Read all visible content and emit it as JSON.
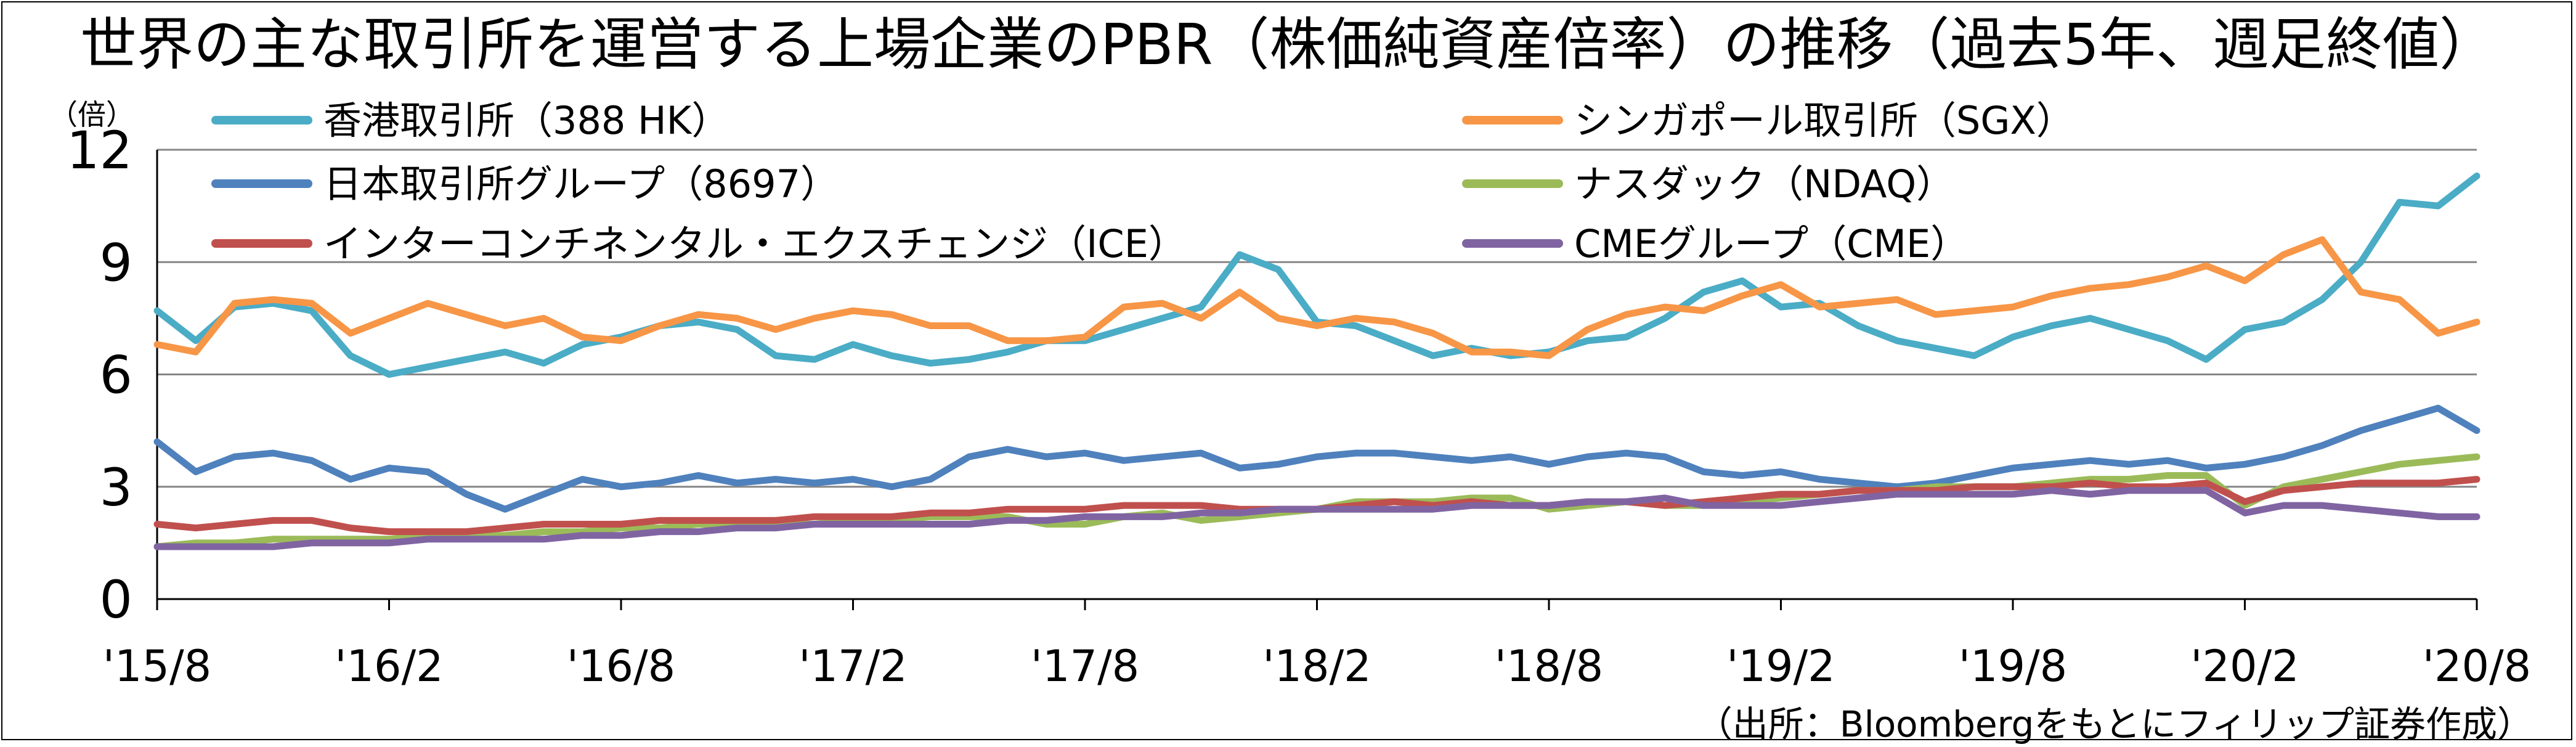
{
  "title": "世界の主な取引所を運営する上場企業のPBR（株価純資産倍率）の推移（過去5年、週足終値）",
  "y_unit": "（倍）",
  "source": "（出所：Bloombergをもとにフィリップ証券作成）",
  "colors": {
    "hkex": "#4BACC6",
    "sgx": "#F79646",
    "jpx": "#4F81BD",
    "ndaq": "#9BBB59",
    "ice": "#C0504D",
    "cme": "#8064A2",
    "grid": "#868686"
  },
  "chart_data": {
    "type": "line",
    "title": "世界の主な取引所を運営する上場企業のPBR（株価純資産倍率）の推移（過去5年、週足終値）",
    "ylabel": "（倍）",
    "ylim": [
      0,
      12
    ],
    "yticks": [
      0,
      3,
      6,
      9,
      12
    ],
    "x_range": [
      "'15/8",
      "'20/8"
    ],
    "x_ticks": [
      "'15/8",
      "'16/2",
      "'16/8",
      "'17/2",
      "'17/8",
      "'18/2",
      "'18/8",
      "'19/2",
      "'19/8",
      "'20/2",
      "'20/8"
    ],
    "grid": true,
    "legend_position": "top",
    "series": [
      {
        "name": "香港取引所（388 HK）",
        "color": "#4BACC6",
        "x": [
          0,
          1,
          2,
          3,
          4,
          5,
          6,
          7,
          8,
          9,
          10,
          11,
          12,
          13,
          14,
          15,
          16,
          17,
          18,
          19,
          20,
          21,
          22,
          23,
          24,
          25,
          26,
          27,
          28,
          29,
          30,
          31,
          32,
          33,
          34,
          35,
          36,
          37,
          38,
          39,
          40,
          41,
          42,
          43,
          44,
          45,
          46,
          47,
          48,
          49,
          50,
          51,
          52,
          53,
          54,
          55,
          56,
          57,
          58,
          59,
          60
        ],
        "values": [
          7.7,
          6.9,
          7.8,
          7.9,
          7.7,
          6.5,
          6.0,
          6.2,
          6.4,
          6.6,
          6.3,
          6.8,
          7.0,
          7.3,
          7.4,
          7.2,
          6.5,
          6.4,
          6.8,
          6.5,
          6.3,
          6.4,
          6.6,
          6.9,
          6.9,
          7.2,
          7.5,
          7.8,
          9.2,
          8.8,
          7.4,
          7.3,
          6.9,
          6.5,
          6.7,
          6.5,
          6.6,
          6.9,
          7.0,
          7.5,
          8.2,
          8.5,
          7.8,
          7.9,
          7.3,
          6.9,
          6.7,
          6.5,
          7.0,
          7.3,
          7.5,
          7.2,
          6.9,
          6.4,
          7.2,
          7.4,
          8.0,
          9.0,
          10.6,
          10.5,
          11.3
        ]
      },
      {
        "name": "シンガポール取引所（SGX）",
        "color": "#F79646",
        "x": [
          0,
          1,
          2,
          3,
          4,
          5,
          6,
          7,
          8,
          9,
          10,
          11,
          12,
          13,
          14,
          15,
          16,
          17,
          18,
          19,
          20,
          21,
          22,
          23,
          24,
          25,
          26,
          27,
          28,
          29,
          30,
          31,
          32,
          33,
          34,
          35,
          36,
          37,
          38,
          39,
          40,
          41,
          42,
          43,
          44,
          45,
          46,
          47,
          48,
          49,
          50,
          51,
          52,
          53,
          54,
          55,
          56,
          57,
          58,
          59,
          60
        ],
        "values": [
          6.8,
          6.6,
          7.9,
          8.0,
          7.9,
          7.1,
          7.5,
          7.9,
          7.6,
          7.3,
          7.5,
          7.0,
          6.9,
          7.3,
          7.6,
          7.5,
          7.2,
          7.5,
          7.7,
          7.6,
          7.3,
          7.3,
          6.9,
          6.9,
          7.0,
          7.8,
          7.9,
          7.5,
          8.2,
          7.5,
          7.3,
          7.5,
          7.4,
          7.1,
          6.6,
          6.6,
          6.5,
          7.2,
          7.6,
          7.8,
          7.7,
          8.1,
          8.4,
          7.8,
          7.9,
          8.0,
          7.6,
          7.7,
          7.8,
          8.1,
          8.3,
          8.4,
          8.6,
          8.9,
          8.5,
          9.2,
          9.6,
          8.2,
          8.0,
          7.1,
          7.4
        ]
      },
      {
        "name": "日本取引所グループ（8697）",
        "color": "#4F81BD",
        "x": [
          0,
          1,
          2,
          3,
          4,
          5,
          6,
          7,
          8,
          9,
          10,
          11,
          12,
          13,
          14,
          15,
          16,
          17,
          18,
          19,
          20,
          21,
          22,
          23,
          24,
          25,
          26,
          27,
          28,
          29,
          30,
          31,
          32,
          33,
          34,
          35,
          36,
          37,
          38,
          39,
          40,
          41,
          42,
          43,
          44,
          45,
          46,
          47,
          48,
          49,
          50,
          51,
          52,
          53,
          54,
          55,
          56,
          57,
          58,
          59,
          60
        ],
        "values": [
          4.2,
          3.4,
          3.8,
          3.9,
          3.7,
          3.2,
          3.5,
          3.4,
          2.8,
          2.4,
          2.8,
          3.2,
          3.0,
          3.1,
          3.3,
          3.1,
          3.2,
          3.1,
          3.2,
          3.0,
          3.2,
          3.8,
          4.0,
          3.8,
          3.9,
          3.7,
          3.8,
          3.9,
          3.5,
          3.6,
          3.8,
          3.9,
          3.9,
          3.8,
          3.7,
          3.8,
          3.6,
          3.8,
          3.9,
          3.8,
          3.4,
          3.3,
          3.4,
          3.2,
          3.1,
          3.0,
          3.1,
          3.3,
          3.5,
          3.6,
          3.7,
          3.6,
          3.7,
          3.5,
          3.6,
          3.8,
          4.1,
          4.5,
          4.8,
          5.1,
          4.5
        ]
      },
      {
        "name": "ナスダック（NDAQ）",
        "color": "#9BBB59",
        "x": [
          0,
          1,
          2,
          3,
          4,
          5,
          6,
          7,
          8,
          9,
          10,
          11,
          12,
          13,
          14,
          15,
          16,
          17,
          18,
          19,
          20,
          21,
          22,
          23,
          24,
          25,
          26,
          27,
          28,
          29,
          30,
          31,
          32,
          33,
          34,
          35,
          36,
          37,
          38,
          39,
          40,
          41,
          42,
          43,
          44,
          45,
          46,
          47,
          48,
          49,
          50,
          51,
          52,
          53,
          54,
          55,
          56,
          57,
          58,
          59,
          60
        ],
        "values": [
          1.4,
          1.5,
          1.5,
          1.6,
          1.6,
          1.6,
          1.6,
          1.7,
          1.7,
          1.7,
          1.8,
          1.8,
          1.9,
          1.9,
          2.0,
          2.0,
          2.0,
          2.0,
          2.1,
          2.1,
          2.2,
          2.2,
          2.2,
          2.0,
          2.0,
          2.2,
          2.3,
          2.1,
          2.2,
          2.3,
          2.4,
          2.6,
          2.6,
          2.6,
          2.7,
          2.7,
          2.4,
          2.5,
          2.6,
          2.5,
          2.5,
          2.6,
          2.7,
          2.8,
          2.9,
          2.9,
          3.0,
          3.0,
          3.0,
          3.1,
          3.2,
          3.2,
          3.3,
          3.3,
          2.5,
          3.0,
          3.2,
          3.4,
          3.6,
          3.7,
          3.8
        ]
      },
      {
        "name": "インターコンチネンタル・エクスチェンジ（ICE）",
        "color": "#C0504D",
        "x": [
          0,
          1,
          2,
          3,
          4,
          5,
          6,
          7,
          8,
          9,
          10,
          11,
          12,
          13,
          14,
          15,
          16,
          17,
          18,
          19,
          20,
          21,
          22,
          23,
          24,
          25,
          26,
          27,
          28,
          29,
          30,
          31,
          32,
          33,
          34,
          35,
          36,
          37,
          38,
          39,
          40,
          41,
          42,
          43,
          44,
          45,
          46,
          47,
          48,
          49,
          50,
          51,
          52,
          53,
          54,
          55,
          56,
          57,
          58,
          59,
          60
        ],
        "values": [
          2.0,
          1.9,
          2.0,
          2.1,
          2.1,
          1.9,
          1.8,
          1.8,
          1.8,
          1.9,
          2.0,
          2.0,
          2.0,
          2.1,
          2.1,
          2.1,
          2.1,
          2.2,
          2.2,
          2.2,
          2.3,
          2.3,
          2.4,
          2.4,
          2.4,
          2.5,
          2.5,
          2.5,
          2.4,
          2.4,
          2.4,
          2.5,
          2.6,
          2.5,
          2.6,
          2.5,
          2.5,
          2.6,
          2.6,
          2.5,
          2.6,
          2.7,
          2.8,
          2.8,
          2.9,
          2.9,
          2.9,
          3.0,
          3.0,
          3.0,
          3.1,
          3.0,
          3.0,
          3.1,
          2.6,
          2.9,
          3.0,
          3.1,
          3.1,
          3.1,
          3.2
        ]
      },
      {
        "name": "CMEグループ（CME）",
        "color": "#8064A2",
        "x": [
          0,
          1,
          2,
          3,
          4,
          5,
          6,
          7,
          8,
          9,
          10,
          11,
          12,
          13,
          14,
          15,
          16,
          17,
          18,
          19,
          20,
          21,
          22,
          23,
          24,
          25,
          26,
          27,
          28,
          29,
          30,
          31,
          32,
          33,
          34,
          35,
          36,
          37,
          38,
          39,
          40,
          41,
          42,
          43,
          44,
          45,
          46,
          47,
          48,
          49,
          50,
          51,
          52,
          53,
          54,
          55,
          56,
          57,
          58,
          59,
          60
        ],
        "values": [
          1.4,
          1.4,
          1.4,
          1.4,
          1.5,
          1.5,
          1.5,
          1.6,
          1.6,
          1.6,
          1.6,
          1.7,
          1.7,
          1.8,
          1.8,
          1.9,
          1.9,
          2.0,
          2.0,
          2.0,
          2.0,
          2.0,
          2.1,
          2.1,
          2.2,
          2.2,
          2.2,
          2.3,
          2.3,
          2.4,
          2.4,
          2.4,
          2.4,
          2.4,
          2.5,
          2.5,
          2.5,
          2.6,
          2.6,
          2.7,
          2.5,
          2.5,
          2.5,
          2.6,
          2.7,
          2.8,
          2.8,
          2.8,
          2.8,
          2.9,
          2.8,
          2.9,
          2.9,
          2.9,
          2.3,
          2.5,
          2.5,
          2.4,
          2.3,
          2.2,
          2.2
        ]
      }
    ]
  }
}
